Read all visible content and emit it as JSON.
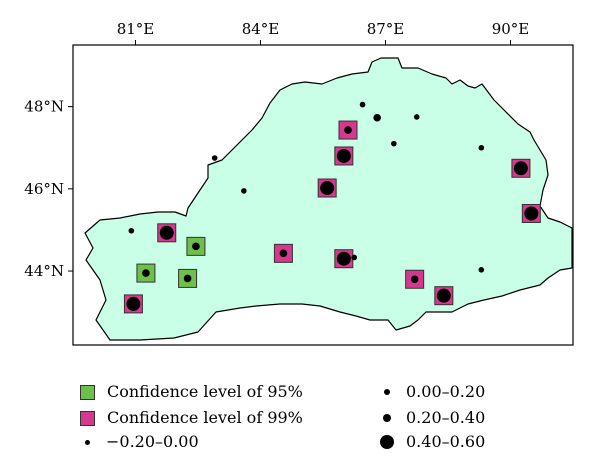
{
  "map": {
    "extent": {
      "lon": [
        79.5,
        91.5
      ],
      "lat": [
        42.2,
        49.5
      ]
    },
    "region_color": "#c8ffe6",
    "sig95_color": "#6ebf4b",
    "sig99_color": "#d6378f",
    "x_ticks": [
      {
        "value": 81,
        "label": "81°E"
      },
      {
        "value": 84,
        "label": "84°E"
      },
      {
        "value": 87,
        "label": "87°E"
      },
      {
        "value": 90,
        "label": "90°E"
      }
    ],
    "y_ticks": [
      {
        "value": 48,
        "label": "48°N"
      },
      {
        "value": 46,
        "label": "46°N"
      },
      {
        "value": 44,
        "label": "44°N"
      }
    ],
    "stations": [
      {
        "lon": 86.45,
        "lat": 48.05,
        "class": "0.00–0.20",
        "sig": "none"
      },
      {
        "lon": 86.8,
        "lat": 47.73,
        "class": "0.20–0.40",
        "sig": "none"
      },
      {
        "lon": 87.75,
        "lat": 47.75,
        "class": "0.00–0.20",
        "sig": "none"
      },
      {
        "lon": 86.1,
        "lat": 47.43,
        "class": "0.20–0.40",
        "sig": "99"
      },
      {
        "lon": 87.2,
        "lat": 47.1,
        "class": "0.00–0.20",
        "sig": "none"
      },
      {
        "lon": 89.3,
        "lat": 47.0,
        "class": "0.00–0.20",
        "sig": "none"
      },
      {
        "lon": 86.0,
        "lat": 46.8,
        "class": "0.40–0.60",
        "sig": "99"
      },
      {
        "lon": 82.9,
        "lat": 46.75,
        "class": "0.00–0.20",
        "sig": "none"
      },
      {
        "lon": 90.25,
        "lat": 46.5,
        "class": "0.40–0.60",
        "sig": "99"
      },
      {
        "lon": 85.6,
        "lat": 46.02,
        "class": "0.40–0.60",
        "sig": "99"
      },
      {
        "lon": 83.6,
        "lat": 45.95,
        "class": "0.00–0.20",
        "sig": "none"
      },
      {
        "lon": 90.5,
        "lat": 45.4,
        "class": "0.40–0.60",
        "sig": "99"
      },
      {
        "lon": 80.9,
        "lat": 44.98,
        "class": "0.00–0.20",
        "sig": "none"
      },
      {
        "lon": 81.75,
        "lat": 44.93,
        "class": "0.40–0.60",
        "sig": "99"
      },
      {
        "lon": 82.45,
        "lat": 44.6,
        "class": "0.20–0.40",
        "sig": "95"
      },
      {
        "lon": 84.55,
        "lat": 44.43,
        "class": "0.20–0.40",
        "sig": "99"
      },
      {
        "lon": 86.0,
        "lat": 44.3,
        "class": "0.40–0.60",
        "sig": "99"
      },
      {
        "lon": 86.25,
        "lat": 44.33,
        "class": "0.00–0.20",
        "sig": "none"
      },
      {
        "lon": 81.25,
        "lat": 43.95,
        "class": "0.20–0.40",
        "sig": "95"
      },
      {
        "lon": 89.3,
        "lat": 44.03,
        "class": "0.00–0.20",
        "sig": "none"
      },
      {
        "lon": 82.25,
        "lat": 43.82,
        "class": "0.20–0.40",
        "sig": "95"
      },
      {
        "lon": 87.7,
        "lat": 43.8,
        "class": "0.20–0.40",
        "sig": "99"
      },
      {
        "lon": 88.4,
        "lat": 43.4,
        "class": "0.40–0.60",
        "sig": "99"
      },
      {
        "lon": 80.95,
        "lat": 43.2,
        "class": "0.40–0.60",
        "sig": "99"
      }
    ]
  },
  "legend": {
    "sig95_label": "Confidence level of 95%",
    "sig99_label": "Confidence level of 99%",
    "neg_label": "−0.20–0.00",
    "c1_label": "0.00–0.20",
    "c2_label": "0.20–0.40",
    "c3_label": "0.40–0.60"
  }
}
